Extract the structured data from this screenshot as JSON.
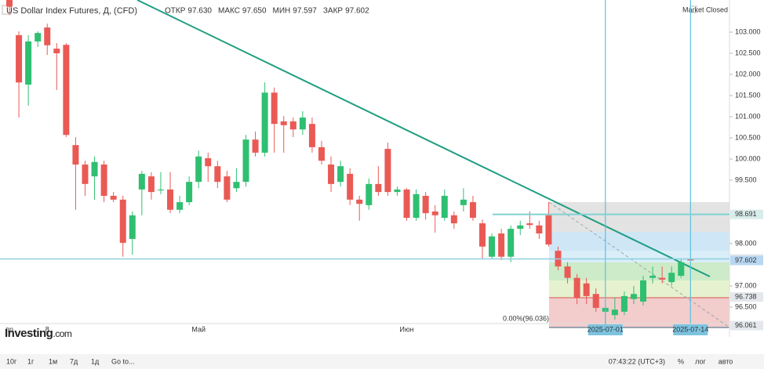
{
  "header": {
    "title": "US Dollar Index Futures, Д, (CFD)",
    "stats": [
      {
        "label": "ОТКР",
        "value": "97.630"
      },
      {
        "label": "МАКС",
        "value": "97.650"
      },
      {
        "label": "МИН",
        "value": "97.597"
      },
      {
        "label": "ЗАКР",
        "value": "97.602"
      }
    ],
    "status": "Market Closed"
  },
  "watermark": {
    "brand": "Investing",
    "suffix": ".com"
  },
  "chart_data": {
    "type": "candlestick",
    "categories": [
      "пр",
      null,
      null,
      null,
      "8",
      null,
      null,
      null,
      null,
      null,
      null,
      null,
      null,
      null,
      null,
      null,
      null,
      null,
      null,
      null,
      "Май",
      null,
      null,
      null,
      null,
      null,
      null,
      null,
      null,
      null,
      null,
      null,
      null,
      null,
      null,
      null,
      null,
      null,
      null,
      null,
      null,
      null,
      "Июн",
      null,
      null,
      null,
      null,
      null,
      null,
      null,
      null,
      null,
      null,
      null,
      null,
      null,
      null,
      null,
      null,
      null,
      null,
      null,
      null,
      "2025-07-01",
      null,
      null,
      null,
      null,
      null,
      null,
      null,
      null,
      "2025-07-14"
    ],
    "open": [
      103.8,
      102.93,
      101.76,
      102.78,
      103.11,
      102.61,
      102.7,
      100.33,
      99.87,
      99.59,
      99.87,
      99.13,
      99.04,
      98.11,
      99.28,
      99.59,
      99.26,
      99.28,
      98.8,
      98.98,
      99.46,
      100.02,
      99.83,
      99.59,
      99.31,
      99.46,
      100.46,
      100.15,
      101.57,
      100.89,
      100.89,
      100.7,
      100.83,
      100.28,
      99.87,
      99.46,
      99.65,
      99.04,
      98.91,
      99.41,
      100.24,
      99.22,
      99.28,
      98.61,
      99.13,
      98.76,
      98.61,
      98.67,
      98.91,
      98.98,
      98.48,
      97.69,
      98.24,
      97.69,
      98.35,
      98.48,
      98.43,
      98.67,
      97.83,
      97.46,
      97.19,
      97.06,
      96.81,
      96.39,
      96.31,
      96.39,
      96.69,
      96.63,
      97.19,
      97.19,
      97.09,
      97.24,
      97.63
    ],
    "high": [
      103.85,
      103.02,
      102.93,
      103.02,
      103.2,
      102.74,
      102.74,
      100.52,
      99.96,
      100.06,
      99.96,
      99.22,
      99.13,
      98.76,
      99.72,
      99.69,
      99.69,
      99.69,
      99.13,
      99.59,
      100.2,
      100.15,
      99.96,
      99.72,
      99.78,
      100.57,
      100.65,
      101.81,
      101.69,
      101.02,
      100.98,
      101.13,
      100.98,
      100.43,
      100.06,
      99.96,
      99.78,
      99.13,
      99.54,
      99.83,
      100.39,
      99.35,
      99.31,
      99.28,
      99.22,
      98.91,
      99.28,
      98.76,
      99.31,
      99.13,
      98.57,
      98.24,
      98.35,
      98.43,
      98.54,
      98.76,
      98.54,
      98.98,
      97.93,
      97.56,
      97.28,
      97.19,
      96.94,
      96.54,
      96.72,
      96.87,
      97.0,
      97.24,
      97.46,
      97.46,
      97.46,
      97.65,
      97.65
    ],
    "low": [
      103.4,
      100.98,
      101.26,
      102.65,
      102.46,
      101.63,
      100.52,
      98.8,
      99.13,
      99.04,
      98.98,
      98.98,
      97.69,
      97.74,
      98.67,
      99.04,
      99.17,
      98.72,
      98.72,
      98.91,
      99.31,
      99.46,
      99.31,
      98.98,
      99.22,
      99.35,
      100.06,
      100.06,
      100.15,
      100.15,
      100.52,
      100.57,
      100.15,
      99.87,
      99.22,
      99.35,
      98.91,
      98.54,
      98.8,
      99.13,
      99.13,
      99.13,
      98.54,
      98.54,
      98.57,
      98.26,
      98.54,
      98.35,
      98.76,
      98.54,
      97.65,
      97.65,
      97.61,
      97.56,
      98.2,
      98.35,
      98.11,
      97.93,
      97.37,
      97.06,
      96.57,
      96.57,
      96.39,
      96.036,
      96.2,
      96.31,
      96.57,
      96.54,
      97.06,
      97.06,
      97.0,
      97.19,
      97.597
    ],
    "close": [
      103.6,
      101.81,
      102.78,
      102.98,
      102.69,
      102.5,
      100.57,
      99.87,
      99.41,
      99.93,
      99.13,
      99.04,
      98.02,
      98.67,
      99.65,
      99.22,
      99.28,
      98.8,
      98.98,
      99.46,
      100.06,
      99.83,
      99.46,
      99.04,
      99.46,
      100.46,
      100.15,
      101.57,
      100.83,
      100.8,
      100.7,
      100.98,
      100.28,
      99.96,
      99.41,
      99.83,
      99.04,
      98.94,
      99.41,
      99.22,
      99.22,
      99.28,
      98.61,
      99.17,
      98.72,
      98.67,
      99.13,
      98.48,
      99.04,
      98.61,
      97.93,
      98.17,
      97.69,
      98.35,
      98.43,
      98.44,
      98.24,
      97.98,
      97.46,
      97.19,
      96.72,
      96.76,
      96.48,
      96.48,
      96.44,
      96.76,
      96.81,
      97.13,
      97.24,
      97.15,
      97.31,
      97.56,
      97.602
    ],
    "up_color": "#2fbf71",
    "down_color": "#ea5a55",
    "ylim": [
      96.11,
      103.76
    ],
    "yticks": [
      {
        "value": 103,
        "label": "103.000"
      },
      {
        "value": 102.5,
        "label": "102.500"
      },
      {
        "value": 102,
        "label": "102.000"
      },
      {
        "value": 101.5,
        "label": "101.500"
      },
      {
        "value": 101,
        "label": "101.000"
      },
      {
        "value": 100.5,
        "label": "100.500"
      },
      {
        "value": 100,
        "label": "100.000"
      },
      {
        "value": 99.5,
        "label": "99.500"
      },
      {
        "value": 98,
        "label": "98.000"
      },
      {
        "value": 97,
        "label": "97.000"
      },
      {
        "value": 96.5,
        "label": "96.500"
      }
    ],
    "price_levels": [
      98.691,
      97.639,
      97.602,
      96.738,
      96.061
    ],
    "price_level_colors": [
      "#d9ecec",
      "#e4e8ec",
      "#b8d7f2",
      "#e4e8ec",
      "#e4e8ec"
    ],
    "annotation": "0.00%(96.036)",
    "grid": false
  },
  "toolbar": {
    "ranges": [
      "10г",
      "1г",
      "1м",
      "7д",
      "1д"
    ],
    "goto": "Go to...",
    "clock": "07:43:22 (UTC+3)",
    "options": [
      "%",
      "лог",
      "авто"
    ]
  }
}
